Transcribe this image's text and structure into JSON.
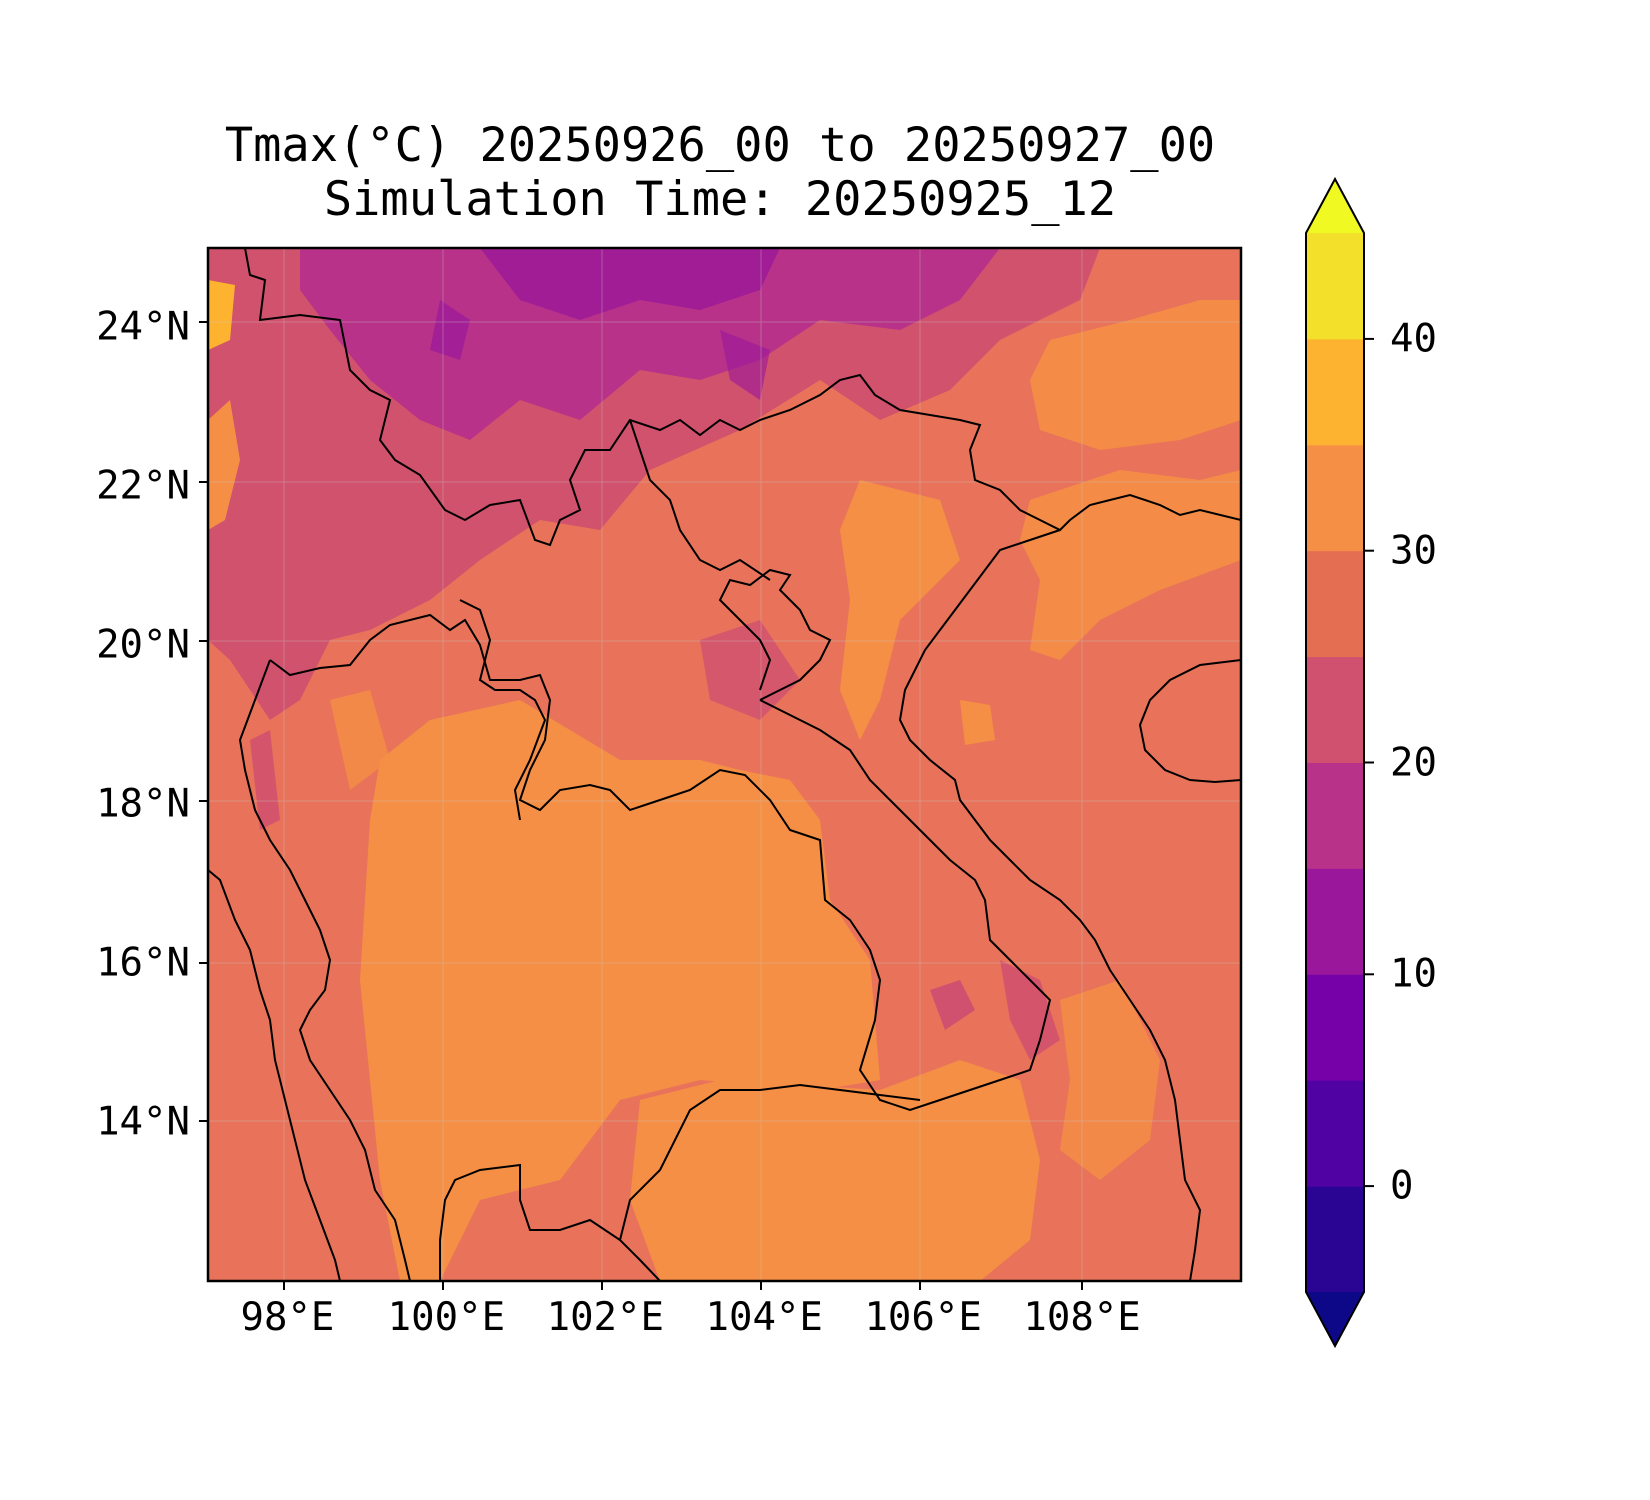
{
  "title": "Tmax(°C) 20250926_00 to 20250927_00",
  "subtitle": "Simulation Time: 20250925_12",
  "map": {
    "lon_range": [
      97,
      110
    ],
    "lat_range": [
      12,
      25
    ],
    "lat_ticks": [
      {
        "value": 24,
        "label": "24°N"
      },
      {
        "value": 22,
        "label": "22°N"
      },
      {
        "value": 20,
        "label": "20°N"
      },
      {
        "value": 18,
        "label": "18°N"
      },
      {
        "value": 16,
        "label": "16°N"
      },
      {
        "value": 14,
        "label": "14°N"
      }
    ],
    "lon_ticks": [
      {
        "value": 98,
        "label": "98°E"
      },
      {
        "value": 100,
        "label": "100°E"
      },
      {
        "value": 102,
        "label": "102°E"
      },
      {
        "value": 104,
        "label": "104°E"
      },
      {
        "value": 106,
        "label": "106°E"
      },
      {
        "value": 108,
        "label": "108°E"
      }
    ],
    "gridlines": true
  },
  "colorbar": {
    "levels": [
      -5,
      0,
      5,
      10,
      15,
      20,
      25,
      30,
      35,
      40,
      45
    ],
    "extend": "both",
    "colors": [
      "#0d0887",
      "#2a0593",
      "#5102a3",
      "#7601a8",
      "#9a179b",
      "#b83289",
      "#d0506f",
      "#e46e52",
      "#f58f45",
      "#fdb32f",
      "#f3e02a",
      "#f0f921"
    ],
    "ticks": [
      {
        "value": 0,
        "label": "0"
      },
      {
        "value": 10,
        "label": "10"
      },
      {
        "value": 20,
        "label": "20"
      },
      {
        "value": 30,
        "label": "30"
      },
      {
        "value": 40,
        "label": "40"
      }
    ]
  }
}
